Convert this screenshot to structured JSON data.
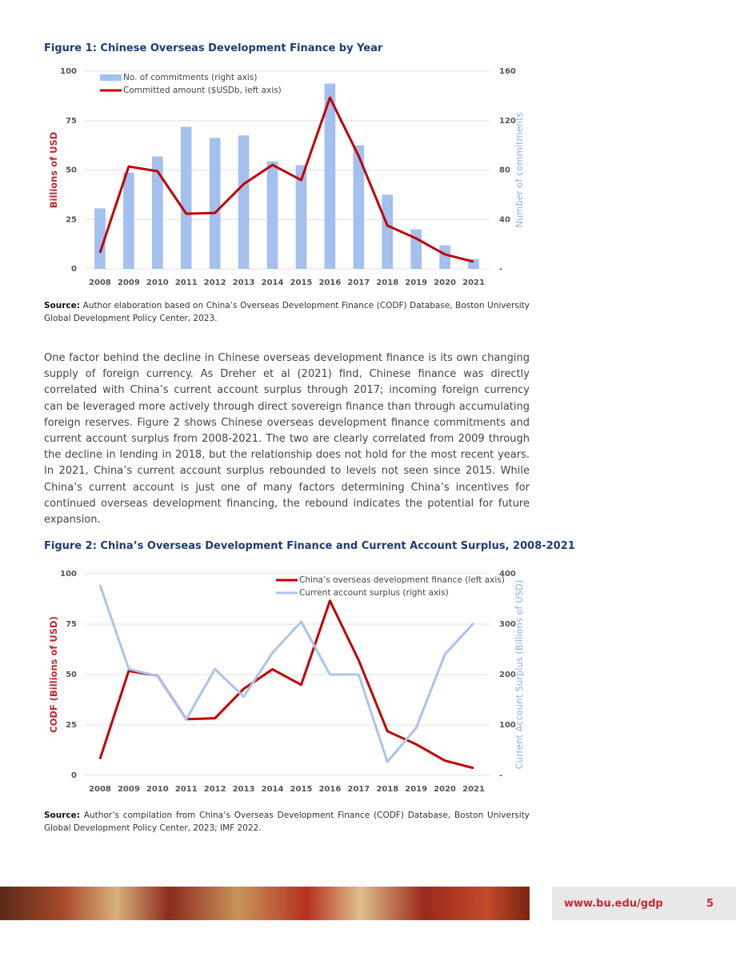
{
  "chart_data": [
    {
      "type": "combo",
      "title": "Figure 1: Chinese Overseas Development Finance by Year",
      "y_label": "Billions of USD",
      "y2_label": "Number of commitments",
      "categories": [
        "2008",
        "2009",
        "2010",
        "2011",
        "2012",
        "2013",
        "2014",
        "2015",
        "2016",
        "2017",
        "2018",
        "2019",
        "2020",
        "2021"
      ],
      "series": [
        {
          "name": "No. of commitments (right axis)",
          "type": "bar",
          "axis": "y2",
          "color": "#a3c0ee",
          "values": [
            49,
            78,
            91,
            115,
            106,
            108,
            87,
            84,
            150,
            100,
            60,
            32,
            19,
            8
          ]
        },
        {
          "name": "Committed amount ($USDb, left axis)",
          "type": "line",
          "axis": "y",
          "color": "#c00000",
          "values": [
            8.1,
            51.8,
            49.4,
            27.9,
            28.3,
            42.9,
            52.6,
            44.9,
            86.6,
            57.1,
            21.9,
            15.4,
            7.3,
            3.6
          ]
        }
      ],
      "ylim": [
        0,
        100
      ],
      "yticks": [
        0,
        25,
        50,
        75,
        100
      ],
      "y2lim": [
        0,
        160
      ],
      "y2ticks": [
        {
          "value": 0,
          "label": "-"
        },
        40,
        80,
        120,
        160
      ],
      "grid": true,
      "legend": "upper left"
    },
    {
      "type": "line",
      "title": "Figure 2: China’s Overseas Development Finance and Current Account Surplus, 2008-2021",
      "y_label": "CODF (Billions of USD)",
      "y2_label": "Current Account Surplus (Billions of USD)",
      "categories": [
        "2008",
        "2009",
        "2010",
        "2011",
        "2012",
        "2013",
        "2014",
        "2015",
        "2016",
        "2017",
        "2018",
        "2019",
        "2020",
        "2021"
      ],
      "series": [
        {
          "name": "China’s overseas development finance (left axis)",
          "type": "line",
          "axis": "y",
          "color": "#c00000",
          "values": [
            8.1,
            51.8,
            49.4,
            27.9,
            28.3,
            42.9,
            52.6,
            44.9,
            86.6,
            57.1,
            21.9,
            15.4,
            7.3,
            3.6
          ]
        },
        {
          "name": "Current account surplus (right axis)",
          "type": "line",
          "axis": "y2",
          "color": "#a9c4ec",
          "values": [
            378,
            211,
            197,
            111,
            211,
            156,
            243,
            305,
            200,
            200,
            27,
            94,
            240,
            302
          ]
        }
      ],
      "ylim": [
        0,
        100
      ],
      "yticks": [
        0,
        25,
        50,
        75,
        100
      ],
      "y2lim": [
        0,
        400
      ],
      "y2ticks": [
        {
          "value": 0,
          "label": "-"
        },
        100,
        200,
        300,
        400
      ],
      "grid": true,
      "legend": "upper right"
    }
  ],
  "document": {
    "source1": {
      "label": "Source:",
      "text": "Author elaboration based on China’s Overseas Development Finance (CODF) Database, Boston University Global Development Policy Center, 2023."
    },
    "paragraph": "One factor behind the decline in Chinese overseas development finance is its own changing supply of foreign currency. As Dreher et al (2021) find, Chinese finance was directly correlated with China’s current account surplus through 2017; incoming foreign currency can be leveraged more actively through direct sovereign finance than through accumulating foreign reserves. Figure 2 shows Chinese overseas development finance commitments and current account surplus from 2008-2021. The two are clearly correlated from 2009 through the decline in lending in 2018, but the relationship does not hold for the most recent years. In 2021, China’s current account surplus rebounded to levels not seen since 2015. While China’s current account is just one of many factors determining China’s incentives for continued overseas development financing, the rebound indicates the potential for future expansion.",
    "source2": {
      "label": "Source:",
      "text": "Author’s compilation from China’s Overseas Development Finance (CODF) Database, Boston University Global Development Policy Center, 2023; IMF 2022."
    },
    "footer": {
      "url": "www.bu.edu/gdp",
      "page": 5
    }
  }
}
